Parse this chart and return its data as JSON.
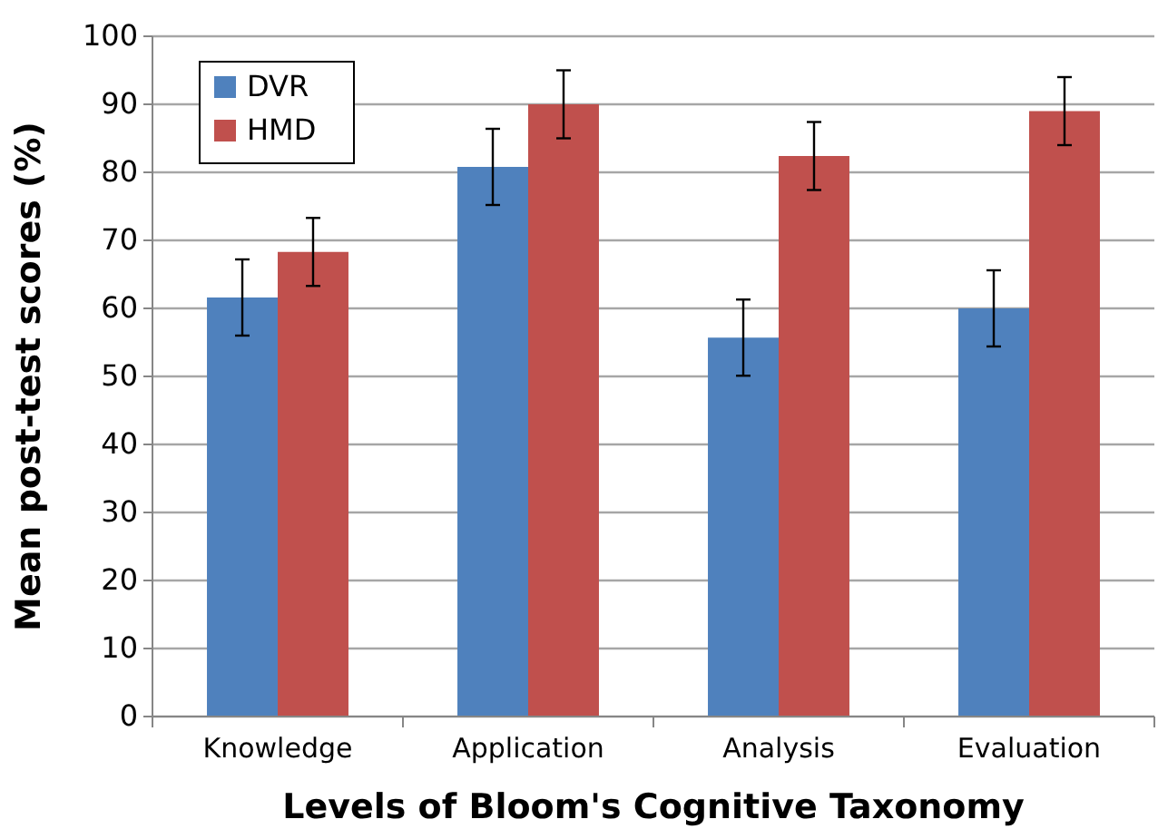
{
  "chart_data": {
    "type": "bar",
    "xlabel": "Levels of Bloom's Cognitive Taxonomy",
    "ylabel": "Mean post-test scores (%)",
    "categories": [
      "Knowledge",
      "Application",
      "Analysis",
      "Evaluation"
    ],
    "series": [
      {
        "name": "DVR",
        "color": "#4f81bd",
        "values": [
          61.6,
          80.8,
          55.7,
          60
        ],
        "errors": [
          5.6,
          5.6,
          5.6,
          5.6
        ]
      },
      {
        "name": "HMD",
        "color": "#c0504d",
        "values": [
          68.3,
          90,
          82.4,
          89
        ],
        "errors": [
          5,
          5,
          5,
          5
        ]
      }
    ],
    "ylim": [
      0,
      100
    ],
    "yticks": [
      0,
      10,
      20,
      30,
      40,
      50,
      60,
      70,
      80,
      90,
      100
    ],
    "grid": "y",
    "legend": "top left"
  }
}
